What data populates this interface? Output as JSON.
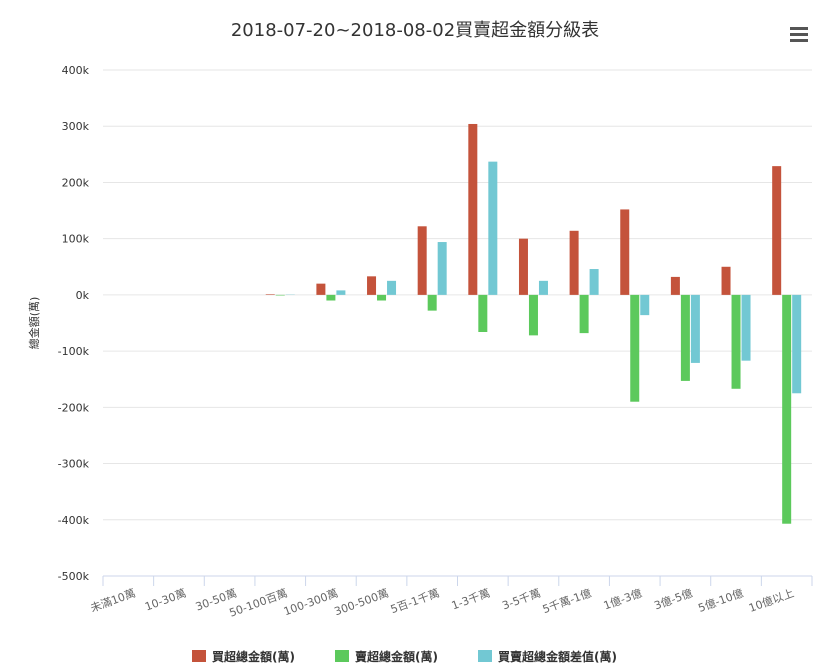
{
  "chart_data": {
    "type": "bar",
    "title": "2018-07-20~2018-08-02買賣超金額分級表",
    "y_label": "總金額(萬)",
    "categories": [
      "未滿10萬",
      "10-30萬",
      "30-50萬",
      "50-100百萬",
      "100-300萬",
      "300-500萬",
      "5百-1千萬",
      "1-3千萬",
      "3-5千萬",
      "5千萬-1億",
      "1億-3億",
      "3億-5億",
      "5億-10億",
      "10億以上"
    ],
    "series": [
      {
        "name": "買超總金額(萬)",
        "color": "#c4533b",
        "values": [
          0,
          0,
          0,
          1000,
          20000,
          33000,
          122000,
          304000,
          100000,
          114000,
          152000,
          32000,
          50000,
          229000
        ]
      },
      {
        "name": "賣超總金額(萬)",
        "color": "#5cc95c",
        "values": [
          0,
          0,
          0,
          -1000,
          -10000,
          -10000,
          -28000,
          -66000,
          -72000,
          -68000,
          -190000,
          -153000,
          -167000,
          -407000
        ]
      },
      {
        "name": "買賣超總金額差值(萬)",
        "color": "#72c8d3",
        "values": [
          0,
          0,
          0,
          500,
          8000,
          25000,
          94000,
          237000,
          25000,
          46000,
          -36000,
          -121000,
          -117000,
          -175000
        ]
      }
    ],
    "ylim": [
      -500000,
      400000
    ],
    "yticks": [
      {
        "value": -500000,
        "label": "-500k"
      },
      {
        "value": -400000,
        "label": "-400k"
      },
      {
        "value": -300000,
        "label": "-300k"
      },
      {
        "value": -200000,
        "label": "-200k"
      },
      {
        "value": -100000,
        "label": "-100k"
      },
      {
        "value": 0,
        "label": "0k"
      },
      {
        "value": 100000,
        "label": "100k"
      },
      {
        "value": 200000,
        "label": "200k"
      },
      {
        "value": 300000,
        "label": "300k"
      },
      {
        "value": 400000,
        "label": "400k"
      }
    ],
    "grid": true
  }
}
